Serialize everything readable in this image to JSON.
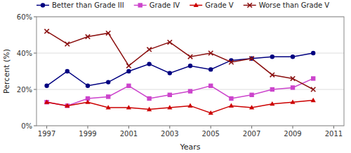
{
  "chart_data": {
    "type": "line",
    "x": [
      1997,
      1998,
      1999,
      2000,
      2001,
      2002,
      2003,
      2004,
      2005,
      2006,
      2007,
      2008,
      2009,
      2010
    ],
    "series": [
      {
        "name": "Better than Grade III",
        "color": "#000080",
        "marker": "circle",
        "values": [
          22,
          30,
          22,
          24,
          30,
          34,
          29,
          33,
          31,
          36,
          37,
          38,
          38,
          40
        ]
      },
      {
        "name": "Grade IV",
        "color": "#CC44CC",
        "marker": "square",
        "values": [
          13,
          11,
          15,
          16,
          22,
          15,
          17,
          19,
          22,
          15,
          17,
          20,
          21,
          26
        ]
      },
      {
        "name": "Grade V",
        "color": "#CC0000",
        "marker": "triangle",
        "values": [
          13,
          11,
          13,
          10,
          10,
          9,
          10,
          11,
          7,
          11,
          10,
          12,
          13,
          14
        ]
      },
      {
        "name": "Worse than Grade V",
        "color": "#8B1010",
        "marker": "x",
        "values": [
          52,
          45,
          49,
          51,
          33,
          42,
          46,
          38,
          40,
          35,
          37,
          28,
          26,
          20
        ]
      }
    ],
    "xlabel": "Years",
    "ylabel": "Percent (%)",
    "xlim": [
      1996.5,
      2011.5
    ],
    "xticks": [
      1997,
      1999,
      2001,
      2003,
      2005,
      2007,
      2009,
      2011
    ],
    "ylim": [
      0,
      60
    ],
    "yticks": [
      {
        "value": 0,
        "label": "0%"
      },
      {
        "value": 20,
        "label": "20%"
      },
      {
        "value": 40,
        "label": "40%"
      },
      {
        "value": 60,
        "label": "60%"
      }
    ],
    "grid": "y",
    "legend": "top"
  }
}
